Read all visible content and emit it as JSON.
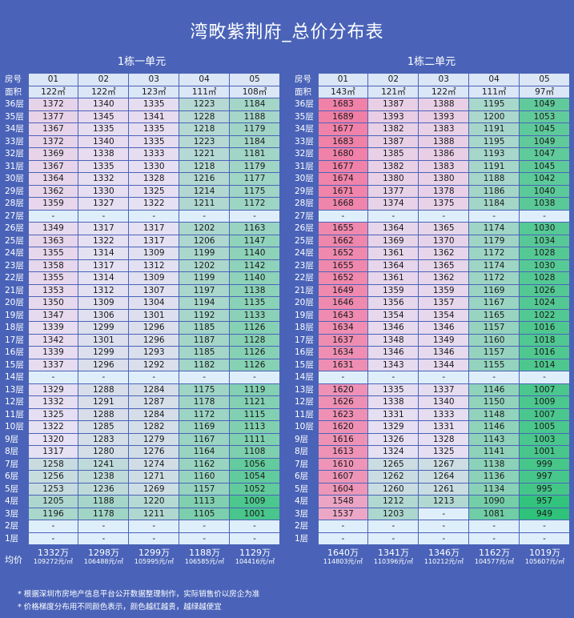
{
  "title": "湾畋紫荆府_总价分布表",
  "unit1": {
    "title": "1栋一单元",
    "room_label": "房号",
    "area_label": "面积",
    "rooms": [
      "01",
      "02",
      "03",
      "04",
      "05"
    ],
    "areas": [
      "122㎡",
      "122㎡",
      "123㎡",
      "111㎡",
      "108㎡"
    ],
    "rows": [
      {
        "floor": "36层",
        "vals": [
          "1372",
          "1340",
          "1335",
          "1223",
          "1184"
        ]
      },
      {
        "floor": "35层",
        "vals": [
          "1377",
          "1345",
          "1341",
          "1228",
          "1188"
        ]
      },
      {
        "floor": "34层",
        "vals": [
          "1367",
          "1335",
          "1335",
          "1218",
          "1179"
        ]
      },
      {
        "floor": "33层",
        "vals": [
          "1372",
          "1340",
          "1335",
          "1223",
          "1184"
        ]
      },
      {
        "floor": "32层",
        "vals": [
          "1369",
          "1338",
          "1333",
          "1221",
          "1181"
        ]
      },
      {
        "floor": "31层",
        "vals": [
          "1367",
          "1335",
          "1330",
          "1218",
          "1179"
        ]
      },
      {
        "floor": "30层",
        "vals": [
          "1364",
          "1332",
          "1328",
          "1216",
          "1177"
        ]
      },
      {
        "floor": "29层",
        "vals": [
          "1362",
          "1330",
          "1325",
          "1214",
          "1175"
        ]
      },
      {
        "floor": "28层",
        "vals": [
          "1359",
          "1327",
          "1322",
          "1211",
          "1172"
        ]
      },
      {
        "floor": "27层",
        "vals": [
          "-",
          "-",
          "-",
          "-",
          "-"
        ]
      },
      {
        "floor": "26层",
        "vals": [
          "1349",
          "1317",
          "1317",
          "1202",
          "1163"
        ]
      },
      {
        "floor": "25层",
        "vals": [
          "1363",
          "1322",
          "1317",
          "1206",
          "1147"
        ]
      },
      {
        "floor": "24层",
        "vals": [
          "1355",
          "1314",
          "1309",
          "1199",
          "1140"
        ]
      },
      {
        "floor": "23层",
        "vals": [
          "1358",
          "1317",
          "1312",
          "1202",
          "1142"
        ]
      },
      {
        "floor": "22层",
        "vals": [
          "1355",
          "1314",
          "1309",
          "1199",
          "1140"
        ]
      },
      {
        "floor": "21层",
        "vals": [
          "1353",
          "1312",
          "1307",
          "1197",
          "1138"
        ]
      },
      {
        "floor": "20层",
        "vals": [
          "1350",
          "1309",
          "1304",
          "1194",
          "1135"
        ]
      },
      {
        "floor": "19层",
        "vals": [
          "1347",
          "1306",
          "1301",
          "1192",
          "1133"
        ]
      },
      {
        "floor": "18层",
        "vals": [
          "1339",
          "1299",
          "1296",
          "1185",
          "1126"
        ]
      },
      {
        "floor": "17层",
        "vals": [
          "1342",
          "1301",
          "1296",
          "1187",
          "1128"
        ]
      },
      {
        "floor": "16层",
        "vals": [
          "1339",
          "1299",
          "1293",
          "1185",
          "1126"
        ]
      },
      {
        "floor": "15层",
        "vals": [
          "1337",
          "1296",
          "1292",
          "1182",
          "1126"
        ]
      },
      {
        "floor": "14层",
        "vals": [
          "-",
          "-",
          "-",
          "-",
          "-"
        ]
      },
      {
        "floor": "13层",
        "vals": [
          "1329",
          "1288",
          "1284",
          "1175",
          "1119"
        ]
      },
      {
        "floor": "12层",
        "vals": [
          "1332",
          "1291",
          "1287",
          "1178",
          "1121"
        ]
      },
      {
        "floor": "11层",
        "vals": [
          "1325",
          "1288",
          "1284",
          "1172",
          "1115"
        ]
      },
      {
        "floor": "10层",
        "vals": [
          "1322",
          "1285",
          "1282",
          "1169",
          "1113"
        ]
      },
      {
        "floor": "9层",
        "vals": [
          "1320",
          "1283",
          "1279",
          "1167",
          "1111"
        ]
      },
      {
        "floor": "8层",
        "vals": [
          "1317",
          "1280",
          "1276",
          "1164",
          "1108"
        ]
      },
      {
        "floor": "7层",
        "vals": [
          "1258",
          "1241",
          "1274",
          "1162",
          "1056"
        ]
      },
      {
        "floor": "6层",
        "vals": [
          "1256",
          "1238",
          "1271",
          "1160",
          "1054"
        ]
      },
      {
        "floor": "5层",
        "vals": [
          "1253",
          "1236",
          "1269",
          "1157",
          "1052"
        ]
      },
      {
        "floor": "4层",
        "vals": [
          "1205",
          "1188",
          "1220",
          "1113",
          "1009"
        ]
      },
      {
        "floor": "3层",
        "vals": [
          "1196",
          "1178",
          "1211",
          "1105",
          "1001"
        ]
      },
      {
        "floor": "2层",
        "vals": [
          "-",
          "-",
          "-",
          "-",
          "-"
        ]
      },
      {
        "floor": "1层",
        "vals": [
          "-",
          "-",
          "-",
          "-",
          "-"
        ]
      }
    ],
    "avgs": [
      {
        "main": "1332万",
        "sub": "109272元/㎡"
      },
      {
        "main": "1298万",
        "sub": "106488元/㎡"
      },
      {
        "main": "1299万",
        "sub": "105995元/㎡"
      },
      {
        "main": "1188万",
        "sub": "106585元/㎡"
      },
      {
        "main": "1129万",
        "sub": "104416元/㎡"
      }
    ]
  },
  "unit2": {
    "title": "1栋二单元",
    "room_label": "房号",
    "area_label": "面积",
    "rooms": [
      "01",
      "02",
      "03",
      "04",
      "05"
    ],
    "areas": [
      "143㎡",
      "121㎡",
      "122㎡",
      "111㎡",
      "97㎡"
    ],
    "rows": [
      {
        "floor": "36层",
        "vals": [
          "1683",
          "1387",
          "1388",
          "1195",
          "1049"
        ]
      },
      {
        "floor": "35层",
        "vals": [
          "1689",
          "1393",
          "1393",
          "1200",
          "1053"
        ]
      },
      {
        "floor": "34层",
        "vals": [
          "1677",
          "1382",
          "1383",
          "1191",
          "1045"
        ]
      },
      {
        "floor": "33层",
        "vals": [
          "1683",
          "1387",
          "1388",
          "1195",
          "1049"
        ]
      },
      {
        "floor": "32层",
        "vals": [
          "1680",
          "1385",
          "1386",
          "1193",
          "1047"
        ]
      },
      {
        "floor": "31层",
        "vals": [
          "1677",
          "1382",
          "1383",
          "1191",
          "1045"
        ]
      },
      {
        "floor": "30层",
        "vals": [
          "1674",
          "1380",
          "1380",
          "1188",
          "1042"
        ]
      },
      {
        "floor": "29层",
        "vals": [
          "1671",
          "1377",
          "1378",
          "1186",
          "1040"
        ]
      },
      {
        "floor": "28层",
        "vals": [
          "1668",
          "1374",
          "1375",
          "1184",
          "1038"
        ]
      },
      {
        "floor": "27层",
        "vals": [
          "-",
          "-",
          "-",
          "-",
          "-"
        ]
      },
      {
        "floor": "26层",
        "vals": [
          "1655",
          "1364",
          "1365",
          "1174",
          "1030"
        ]
      },
      {
        "floor": "25层",
        "vals": [
          "1662",
          "1369",
          "1370",
          "1179",
          "1034"
        ]
      },
      {
        "floor": "24层",
        "vals": [
          "1652",
          "1361",
          "1362",
          "1172",
          "1028"
        ]
      },
      {
        "floor": "23层",
        "vals": [
          "1655",
          "1364",
          "1365",
          "1174",
          "1030"
        ]
      },
      {
        "floor": "22层",
        "vals": [
          "1652",
          "1361",
          "1362",
          "1172",
          "1028"
        ]
      },
      {
        "floor": "21层",
        "vals": [
          "1649",
          "1359",
          "1359",
          "1169",
          "1026"
        ]
      },
      {
        "floor": "20层",
        "vals": [
          "1646",
          "1356",
          "1357",
          "1167",
          "1024"
        ]
      },
      {
        "floor": "19层",
        "vals": [
          "1643",
          "1354",
          "1354",
          "1165",
          "1022"
        ]
      },
      {
        "floor": "18层",
        "vals": [
          "1634",
          "1346",
          "1346",
          "1157",
          "1016"
        ]
      },
      {
        "floor": "17层",
        "vals": [
          "1637",
          "1348",
          "1349",
          "1160",
          "1018"
        ]
      },
      {
        "floor": "16层",
        "vals": [
          "1634",
          "1346",
          "1346",
          "1157",
          "1016"
        ]
      },
      {
        "floor": "15层",
        "vals": [
          "1631",
          "1343",
          "1344",
          "1155",
          "1014"
        ]
      },
      {
        "floor": "14层",
        "vals": [
          "-",
          "-",
          "-",
          "-",
          "-"
        ]
      },
      {
        "floor": "13层",
        "vals": [
          "1620",
          "1335",
          "1337",
          "1146",
          "1007"
        ]
      },
      {
        "floor": "12层",
        "vals": [
          "1626",
          "1338",
          "1340",
          "1150",
          "1009"
        ]
      },
      {
        "floor": "11层",
        "vals": [
          "1623",
          "1331",
          "1333",
          "1148",
          "1007"
        ]
      },
      {
        "floor": "10层",
        "vals": [
          "1620",
          "1329",
          "1331",
          "1146",
          "1005"
        ]
      },
      {
        "floor": "9层",
        "vals": [
          "1616",
          "1326",
          "1328",
          "1143",
          "1003"
        ]
      },
      {
        "floor": "8层",
        "vals": [
          "1613",
          "1324",
          "1325",
          "1141",
          "1001"
        ]
      },
      {
        "floor": "7层",
        "vals": [
          "1610",
          "1265",
          "1267",
          "1138",
          "999"
        ]
      },
      {
        "floor": "6层",
        "vals": [
          "1607",
          "1262",
          "1264",
          "1136",
          "997"
        ]
      },
      {
        "floor": "5层",
        "vals": [
          "1604",
          "1260",
          "1261",
          "1134",
          "995"
        ]
      },
      {
        "floor": "4层",
        "vals": [
          "1548",
          "1212",
          "1213",
          "1090",
          "957"
        ]
      },
      {
        "floor": "3层",
        "vals": [
          "1537",
          "1203",
          "-",
          "1081",
          "949"
        ]
      },
      {
        "floor": "2层",
        "vals": [
          "-",
          "-",
          "-",
          "-",
          "-"
        ]
      },
      {
        "floor": "1层",
        "vals": [
          "-",
          "-",
          "-",
          "-",
          "-"
        ]
      }
    ],
    "avgs": [
      {
        "main": "1640万",
        "sub": "114803元/㎡"
      },
      {
        "main": "1341万",
        "sub": "110396元/㎡"
      },
      {
        "main": "1346万",
        "sub": "110212元/㎡"
      },
      {
        "main": "1162万",
        "sub": "104577元/㎡"
      },
      {
        "main": "1019万",
        "sub": "105607元/㎡"
      }
    ]
  },
  "avg_label": "均价",
  "notes": [
    "* 根据深圳市房地产信息平台公开数据整理制作，实际销售价以房企为准",
    "* 价格梯度分布用不同颜色表示，颜色越红越贵，越绿越便宜"
  ],
  "colors": {
    "background": "#4a63b8",
    "header": "#dbe6f6",
    "empty_row": "#dfeefb",
    "expensive": "#f07fa6",
    "mid": "#e6e1f4",
    "cheap": "#2ec27a"
  }
}
